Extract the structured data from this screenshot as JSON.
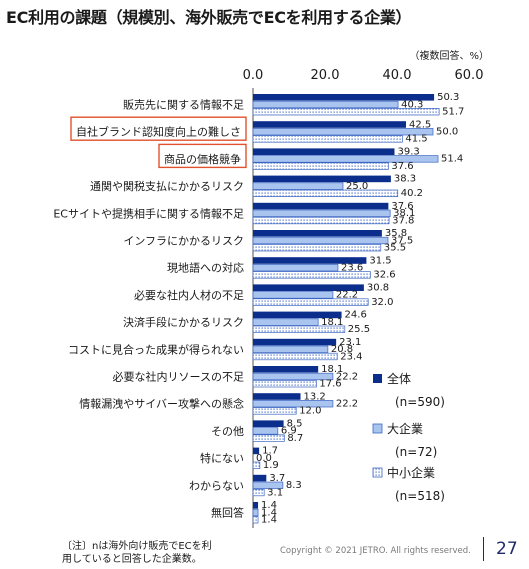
{
  "page": {
    "title": "EC利用の課題（規模別、海外販売でECを利用する企業）",
    "unit_note": "（複数回答、%）",
    "footnote_lines": [
      "〔注〕nは海外向け販売でECを利",
      "用していると回答した企業数。"
    ],
    "copyright": "Copyright © 2021 JETRO. All rights reserved.",
    "page_number": "27"
  },
  "chart_data": {
    "type": "bar",
    "orientation": "horizontal",
    "xlim": [
      0,
      60
    ],
    "x_ticks": [
      "0.0",
      "20.0",
      "40.0",
      "60.0"
    ],
    "grid": false,
    "legend_position": "bottom-right",
    "highlighted_categories": [
      "自社ブランド認知度向上の難しさ",
      "商品の価格競争"
    ],
    "categories": [
      "販売先に関する情報不足",
      "自社ブランド認知度向上の難しさ",
      "商品の価格競争",
      "通関や関税支払にかかるリスク",
      "ECサイトや提携相手に関する情報不足",
      "インフラにかかるリスク",
      "現地語への対応",
      "必要な社内人材の不足",
      "決済手段にかかるリスク",
      "コストに見合った成果が得られない",
      "必要な社内リソースの不足",
      "情報漏洩やサイバー攻撃への懸念",
      "その他",
      "特にない",
      "わからない",
      "無回答"
    ],
    "series": [
      {
        "name": "全体",
        "n_label": "(n=590)",
        "color": "#0b2d8c",
        "values": [
          50.3,
          42.5,
          39.3,
          38.3,
          37.6,
          35.8,
          31.5,
          30.8,
          24.6,
          23.1,
          18.1,
          13.2,
          8.5,
          1.7,
          3.7,
          1.4
        ],
        "labels": [
          "50.3",
          "42.5",
          "39.3",
          "38.3",
          "37.6",
          "35.8",
          "31.5",
          "30.8",
          "24.6",
          "23.1",
          "18.1",
          "13.2",
          "8.5",
          "1.7",
          "3.7",
          "1.4"
        ]
      },
      {
        "name": "大企業",
        "n_label": "(n=72)",
        "color": "#a9c4ee",
        "values": [
          40.3,
          50.0,
          51.4,
          25.0,
          38.1,
          37.5,
          23.6,
          22.2,
          18.1,
          20.8,
          22.2,
          22.2,
          6.9,
          0.0,
          8.3,
          1.4
        ],
        "labels": [
          "40.3",
          "50.0",
          "51.4",
          "25.0",
          "38.1",
          "37.5",
          "23.6",
          "22.2",
          "18.1",
          "20.8",
          "22.2",
          "22.2",
          "6.9",
          "0.0",
          "8.3",
          "1.4"
        ]
      },
      {
        "name": "中小企業",
        "n_label": "(n=518)",
        "color": "#3d66c4",
        "values": [
          51.7,
          41.5,
          37.6,
          40.2,
          37.8,
          35.5,
          32.6,
          32.0,
          25.5,
          23.4,
          17.6,
          12.0,
          8.7,
          1.9,
          3.1,
          1.4
        ],
        "labels": [
          "51.7",
          "41.5",
          "37.6",
          "40.2",
          "37.8",
          "35.5",
          "32.6",
          "32.0",
          "25.5",
          "23.4",
          "17.6",
          "12.0",
          "8.7",
          "1.9",
          "3.1",
          "1.4"
        ]
      }
    ]
  }
}
